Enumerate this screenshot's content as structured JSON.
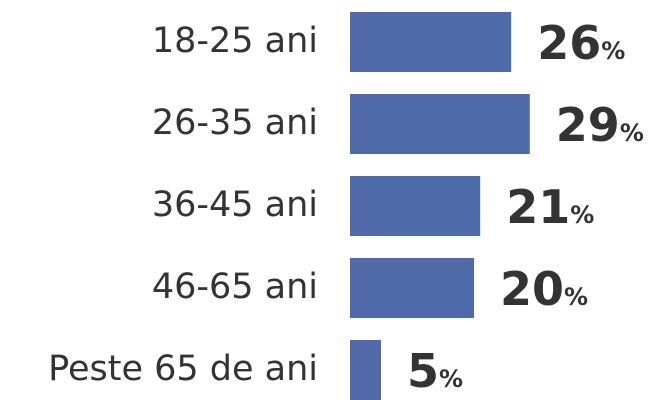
{
  "chart_data": {
    "type": "barh",
    "categories": [
      "18-25 ani",
      "26-35 ani",
      "36-45 ani",
      "46-65 ani",
      "Peste 65 de ani"
    ],
    "values": [
      26,
      29,
      21,
      20,
      5
    ],
    "value_labels": [
      "26%",
      "29%",
      "21%",
      "20%",
      "5%"
    ],
    "color": "#4f6aa8"
  }
}
